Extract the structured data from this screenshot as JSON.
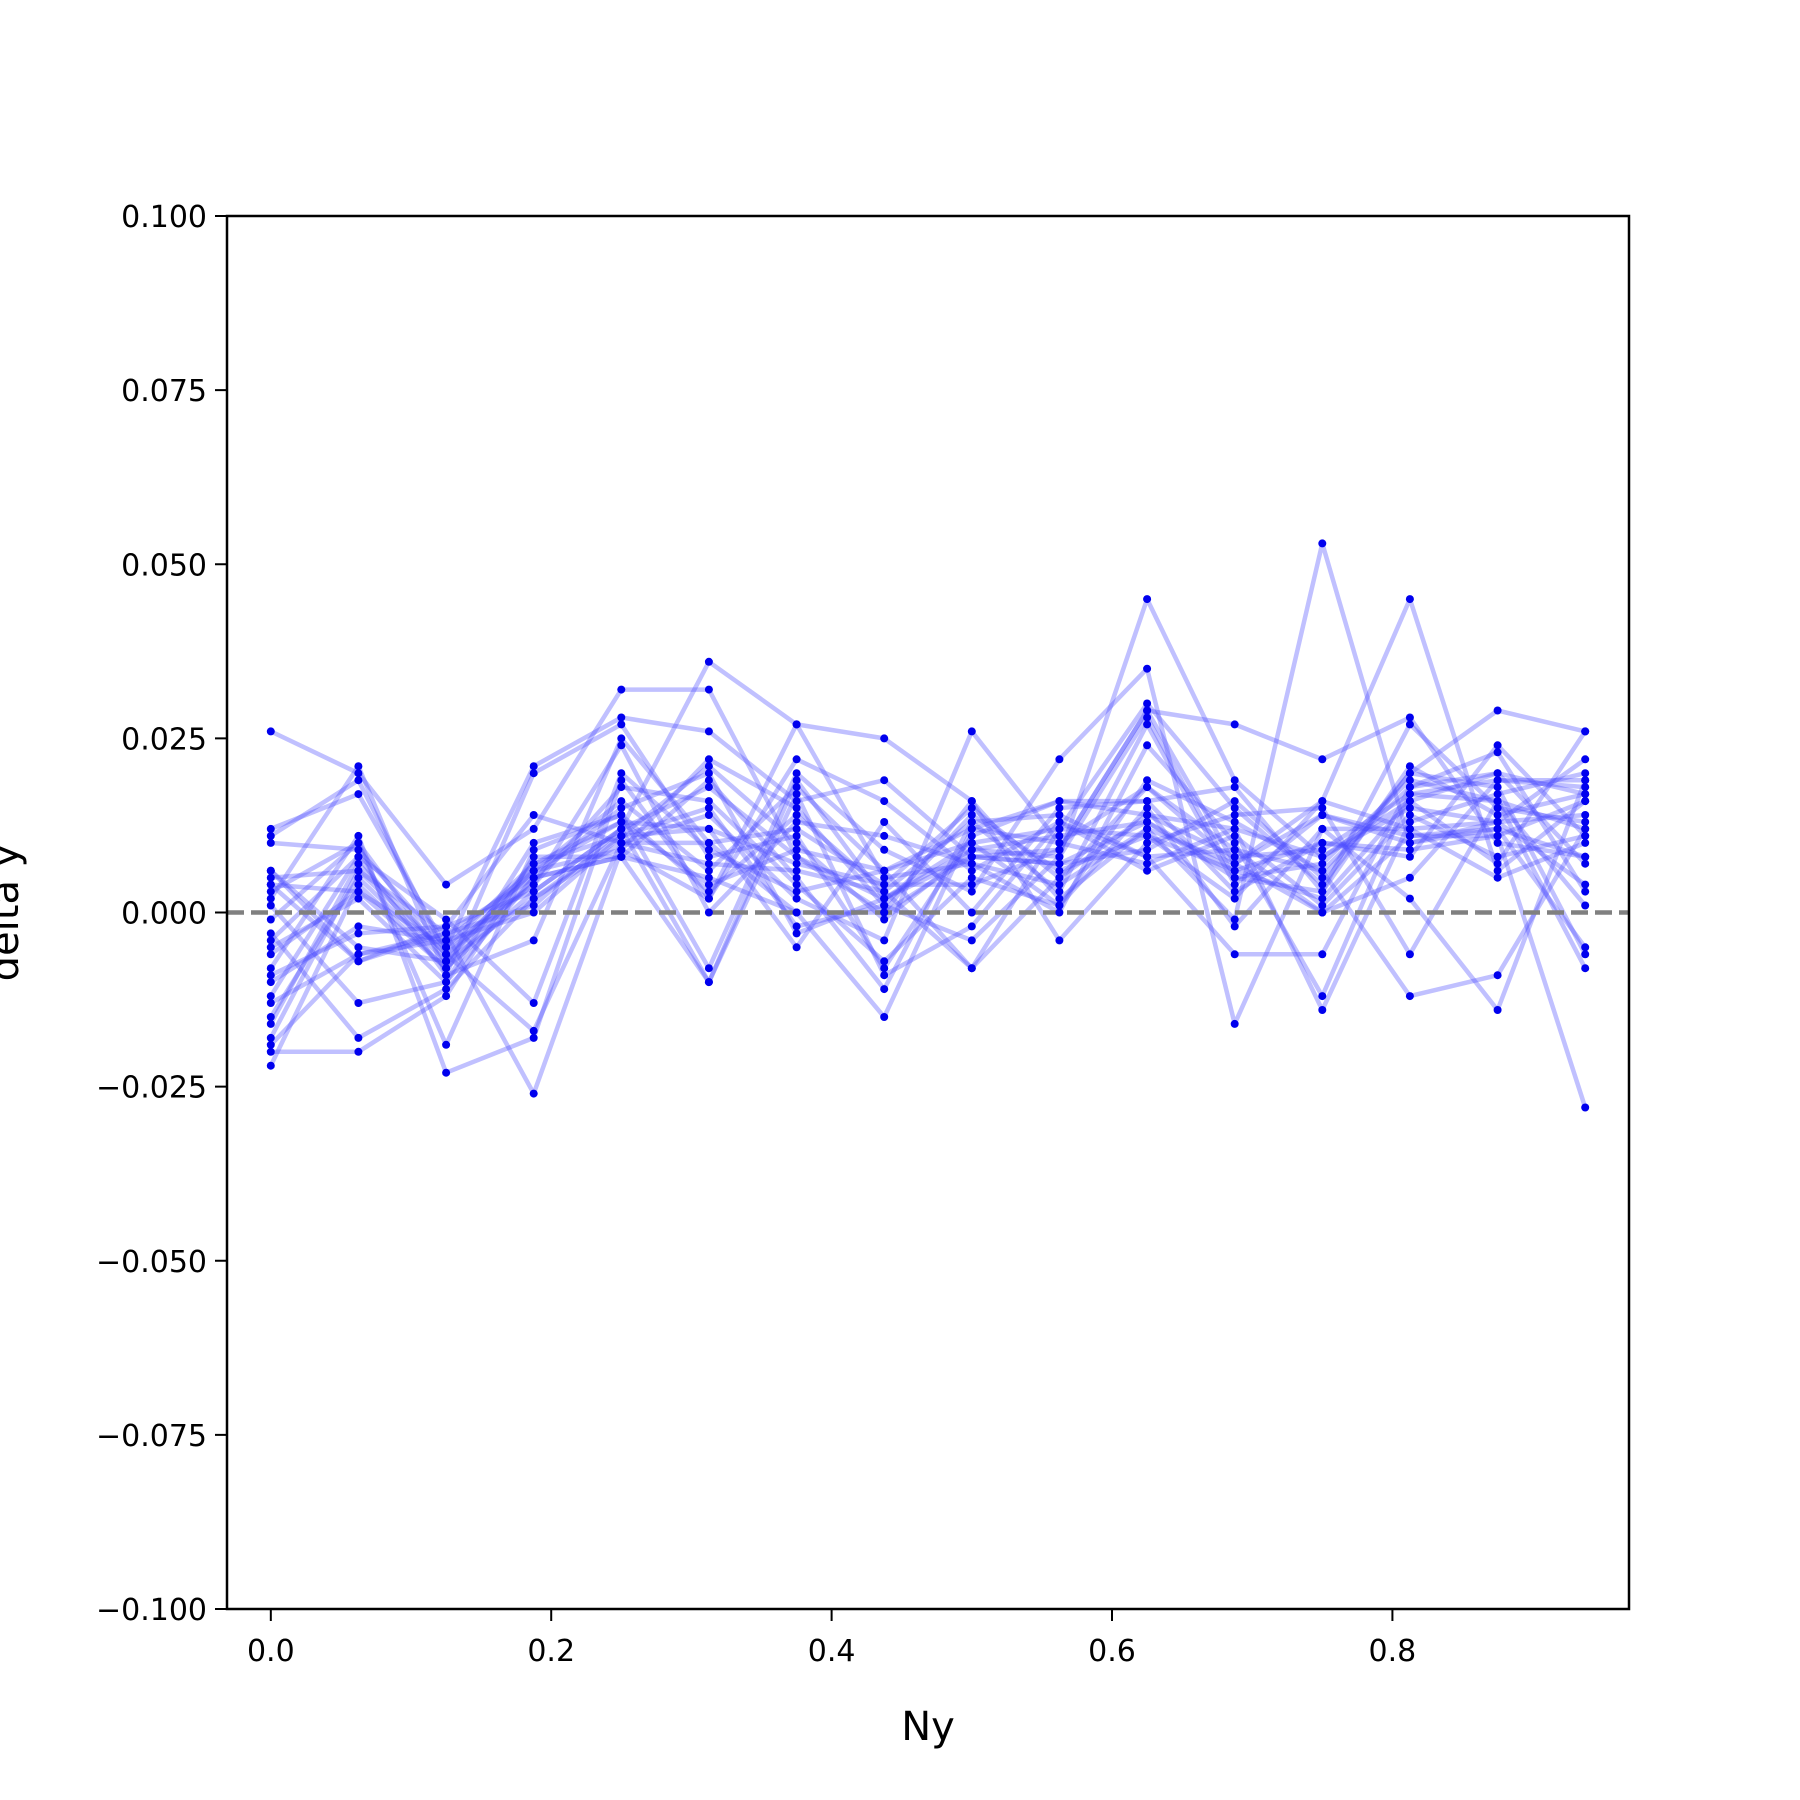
{
  "chart_data": {
    "type": "line",
    "title": "",
    "xlabel": "Ny",
    "ylabel": "delta y",
    "xlim": [
      -0.03125,
      0.96875
    ],
    "ylim": [
      -0.1,
      0.1
    ],
    "x": [
      0.0,
      0.0625,
      0.125,
      0.1875,
      0.25,
      0.3125,
      0.375,
      0.4375,
      0.5,
      0.5625,
      0.625,
      0.6875,
      0.75,
      0.8125,
      0.875,
      0.9375
    ],
    "xticks": [
      0.0,
      0.2,
      0.4,
      0.6,
      0.8
    ],
    "xtick_labels": [
      "0.0",
      "0.2",
      "0.4",
      "0.6",
      "0.8"
    ],
    "yticks": [
      -0.1,
      -0.075,
      -0.05,
      -0.025,
      0.0,
      0.025,
      0.05,
      0.075,
      0.1
    ],
    "ytick_labels": [
      "−0.100",
      "−0.075",
      "−0.050",
      "−0.025",
      "0.000",
      "0.025",
      "0.050",
      "0.075",
      "0.100"
    ],
    "reference_line": {
      "y": 0.0,
      "style": "dashed",
      "color": "#808080"
    },
    "grid": false,
    "line_color": "#4b4bff",
    "marker_color": "#0000ee",
    "series": [
      {
        "values": [
          0.026,
          0.02,
          0.004,
          0.012,
          0.032,
          0.032,
          0.008,
          0.002,
          0.01,
          0.012,
          0.03,
          0.015,
          0.004,
          0.02,
          0.029,
          0.026
        ]
      },
      {
        "values": [
          0.012,
          0.017,
          -0.005,
          0.021,
          0.028,
          0.026,
          0.016,
          0.019,
          0.008,
          0.009,
          0.029,
          0.027,
          0.022,
          0.028,
          0.01,
          0.008
        ]
      },
      {
        "values": [
          -0.022,
          0.004,
          -0.008,
          0.003,
          0.012,
          0.036,
          0.027,
          0.025,
          0.016,
          0.002,
          0.012,
          -0.001,
          0.053,
          0.01,
          0.013,
          0.022
        ]
      },
      {
        "values": [
          0.006,
          -0.007,
          -0.002,
          0.014,
          0.01,
          0.014,
          0.002,
          -0.004,
          0.026,
          0.01,
          0.018,
          0.007,
          0.016,
          0.045,
          0.006,
          0.016
        ]
      },
      {
        "values": [
          -0.019,
          -0.006,
          -0.003,
          -0.026,
          0.009,
          0.022,
          0.015,
          0.001,
          -0.004,
          0.008,
          0.045,
          0.019,
          0.008,
          0.016,
          0.02,
          0.017
        ]
      },
      {
        "values": [
          0.003,
          0.01,
          -0.019,
          0.009,
          0.014,
          -0.008,
          0.02,
          0.009,
          0.003,
          0.022,
          0.035,
          -0.016,
          0.012,
          0.002,
          -0.014,
          0.019
        ]
      },
      {
        "values": [
          -0.012,
          0.008,
          -0.009,
          -0.004,
          0.025,
          0.01,
          0.0,
          -0.015,
          0.012,
          0.016,
          0.014,
          0.012,
          -0.014,
          0.013,
          0.017,
          0.02
        ]
      },
      {
        "values": [
          -0.015,
          0.005,
          -0.007,
          0.006,
          0.016,
          0.006,
          0.018,
          0.006,
          -0.008,
          0.005,
          0.018,
          0.009,
          0.006,
          -0.012,
          -0.009,
          0.012
        ]
      },
      {
        "values": [
          -0.008,
          0.011,
          -0.023,
          -0.018,
          0.019,
          0.002,
          0.022,
          0.016,
          0.006,
          0.013,
          0.008,
          -0.006,
          -0.006,
          0.018,
          0.023,
          0.003
        ]
      },
      {
        "values": [
          0.001,
          -0.013,
          -0.01,
          0.005,
          0.008,
          0.019,
          0.005,
          -0.011,
          0.013,
          0.003,
          0.027,
          0.004,
          0.014,
          0.011,
          0.012,
          -0.005
        ]
      },
      {
        "values": [
          -0.006,
          0.003,
          -0.005,
          0.007,
          0.013,
          0.012,
          -0.005,
          0.013,
          0.0,
          0.015,
          0.016,
          0.018,
          0.003,
          0.027,
          0.015,
          0.013
        ]
      },
      {
        "values": [
          -0.003,
          -0.018,
          -0.011,
          0.002,
          0.011,
          0.021,
          0.01,
          -0.001,
          0.009,
          0.011,
          0.013,
          0.006,
          0.01,
          0.009,
          0.011,
          0.016
        ]
      },
      {
        "values": [
          0.005,
          0.006,
          -0.006,
          0.004,
          0.024,
          0.0,
          0.013,
          0.011,
          0.007,
          0.0,
          0.024,
          0.01,
          -0.012,
          0.017,
          0.016,
          -0.008
        ]
      },
      {
        "values": [
          -0.01,
          -0.002,
          -0.004,
          0.0,
          0.011,
          0.015,
          -0.002,
          0.001,
          0.014,
          0.006,
          0.011,
          0.002,
          0.016,
          0.012,
          0.005,
          0.01
        ]
      },
      {
        "values": [
          0.011,
          0.019,
          -0.006,
          -0.017,
          0.01,
          0.01,
          0.012,
          0.004,
          0.004,
          0.009,
          0.029,
          0.007,
          0.0,
          0.005,
          0.019,
          0.018
        ]
      },
      {
        "values": [
          -0.018,
          0.006,
          -0.003,
          0.001,
          0.012,
          0.018,
          0.008,
          0.0,
          0.016,
          -0.004,
          0.01,
          0.014,
          0.015,
          -0.006,
          0.016,
          0.001
        ]
      },
      {
        "values": [
          -0.004,
          0.008,
          -0.001,
          -0.013,
          0.02,
          0.009,
          0.003,
          0.006,
          0.01,
          0.001,
          0.015,
          -0.002,
          0.012,
          0.012,
          0.013,
          0.014
        ]
      },
      {
        "values": [
          -0.02,
          -0.02,
          -0.012,
          0.008,
          0.008,
          -0.01,
          0.017,
          -0.009,
          -0.002,
          0.013,
          0.006,
          0.011,
          0.001,
          0.014,
          0.008,
          0.011
        ]
      },
      {
        "values": [
          0.004,
          0.003,
          -0.008,
          0.005,
          0.015,
          0.02,
          -0.003,
          0.002,
          0.008,
          0.007,
          0.009,
          0.016,
          0.005,
          0.02,
          0.018,
          -0.006
        ]
      },
      {
        "values": [
          -0.013,
          -0.006,
          -0.004,
          0.006,
          0.009,
          0.002,
          0.027,
          0.005,
          0.007,
          0.004,
          0.012,
          0.007,
          0.014,
          0.01,
          0.012,
          0.008
        ]
      },
      {
        "values": [
          0.002,
          0.021,
          -0.009,
          0.02,
          0.027,
          0.008,
          0.011,
          -0.008,
          0.011,
          0.016,
          0.016,
          0.003,
          0.01,
          0.008,
          0.024,
          0.011
        ]
      },
      {
        "values": [
          -0.009,
          -0.003,
          -0.002,
          0.003,
          0.012,
          -0.01,
          0.019,
          0.002,
          0.009,
          0.008,
          0.028,
          0.005,
          0.003,
          0.021,
          0.014,
          0.017
        ]
      },
      {
        "values": [
          0.01,
          0.009,
          -0.005,
          0.004,
          0.018,
          0.016,
          0.004,
          -0.007,
          0.005,
          0.001,
          0.019,
          0.013,
          0.006,
          0.018,
          0.02,
          0.007
        ]
      },
      {
        "values": [
          -0.005,
          0.002,
          -0.01,
          0.01,
          0.014,
          0.003,
          0.014,
          0.003,
          -0.008,
          0.012,
          0.011,
          0.006,
          0.002,
          0.016,
          0.007,
          0.026
        ]
      },
      {
        "values": [
          -0.016,
          0.007,
          -0.006,
          0.006,
          0.013,
          0.004,
          0.009,
          0.006,
          0.012,
          0.01,
          0.007,
          0.012,
          0.008,
          0.015,
          0.013,
          0.004
        ]
      },
      {
        "values": [
          0.006,
          -0.005,
          -0.007,
          0.002,
          0.01,
          0.007,
          0.006,
          0.003,
          0.013,
          0.014,
          0.008,
          0.009,
          0.0,
          0.011,
          0.011,
          -0.028
        ]
      },
      {
        "values": [
          -0.001,
          0.01,
          -0.007,
          0.007,
          0.011,
          0.012,
          0.007,
          0.004,
          0.015,
          0.005,
          0.014,
          0.008,
          0.009,
          0.017,
          0.019,
          0.019
        ]
      },
      {
        "values": [
          0.004,
          -0.007,
          -0.003,
          0.005,
          0.008,
          0.005,
          0.0,
          0.0,
          0.008,
          0.007,
          0.013,
          0.005,
          0.007,
          0.019,
          0.016,
          0.012
        ]
      }
    ]
  }
}
